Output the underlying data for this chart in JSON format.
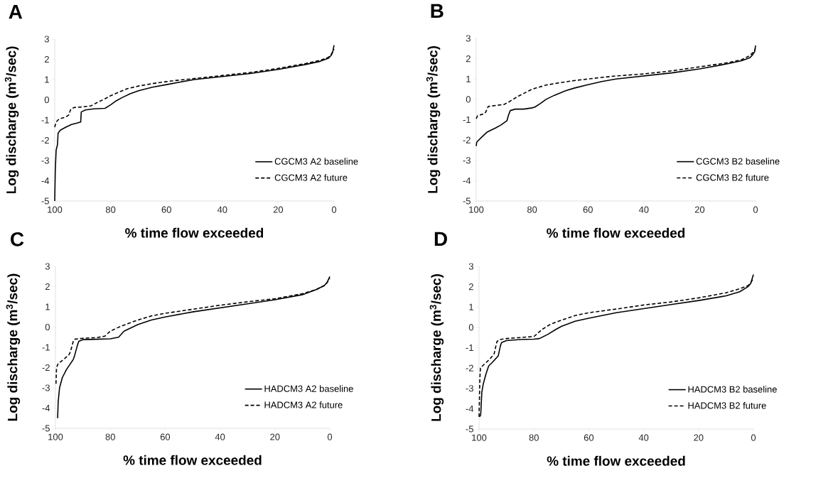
{
  "chart_data": [
    {
      "type": "line",
      "title": "A",
      "xlabel": "% time flow exceeded",
      "ylabel": "Log discharge (m$^{3}$/sec)",
      "xlim": [
        100,
        0
      ],
      "ylim": [
        -5,
        3
      ],
      "xticks": [
        100,
        80,
        60,
        40,
        20,
        0
      ],
      "yticks": [
        -5,
        -4,
        -3,
        -2,
        -1,
        0,
        1,
        2,
        3
      ],
      "grid": false,
      "legend": "bottom right",
      "marker": "none",
      "series": [
        {
          "name": "CGCM3 A2 baseline",
          "color": "#000000",
          "line_style": "solid",
          "x": [
            100,
            99.8,
            99.5,
            99,
            98.8,
            98,
            96,
            94,
            92,
            90.7,
            90.5,
            89,
            86,
            82,
            80,
            78,
            76,
            73,
            70,
            65,
            60,
            55,
            50,
            40,
            30,
            20,
            10,
            5,
            2,
            1,
            0.5,
            0
          ],
          "values": [
            -5,
            -3.5,
            -2.5,
            -2.2,
            -1.65,
            -1.5,
            -1.35,
            -1.22,
            -1.15,
            -1.1,
            -0.6,
            -0.5,
            -0.45,
            -0.42,
            -0.25,
            -0.05,
            0.1,
            0.3,
            0.45,
            0.62,
            0.75,
            0.88,
            1.0,
            1.15,
            1.3,
            1.5,
            1.75,
            1.9,
            2.05,
            2.2,
            2.35,
            2.7
          ]
        },
        {
          "name": "CGCM3 A2 future",
          "color": "#000000",
          "line_style": "dashed",
          "x": [
            100,
            99.5,
            98.5,
            96,
            95,
            94.2,
            93,
            90,
            87,
            85,
            82,
            80,
            77,
            74,
            70,
            65,
            60,
            55,
            50,
            40,
            30,
            20,
            10,
            5,
            2,
            1,
            0
          ],
          "values": [
            -1.35,
            -1.1,
            -0.95,
            -0.85,
            -0.75,
            -0.45,
            -0.38,
            -0.35,
            -0.3,
            -0.15,
            0.05,
            0.2,
            0.38,
            0.55,
            0.68,
            0.8,
            0.9,
            0.98,
            1.05,
            1.2,
            1.35,
            1.55,
            1.8,
            1.95,
            2.1,
            2.25,
            2.5
          ]
        }
      ]
    },
    {
      "type": "line",
      "title": "B",
      "xlabel": "% time flow exceeded",
      "ylabel": "Log discharge (m$^{3}$/sec)",
      "xlim": [
        100,
        0
      ],
      "ylim": [
        -5,
        3
      ],
      "xticks": [
        100,
        80,
        60,
        40,
        20,
        0
      ],
      "yticks": [
        -5,
        -4,
        -3,
        -2,
        -1,
        0,
        1,
        2,
        3
      ],
      "grid": false,
      "legend": "bottom right",
      "marker": "none",
      "series": [
        {
          "name": "CGCM3 B2 baseline",
          "color": "#000000",
          "line_style": "solid",
          "x": [
            100,
            99.8,
            98,
            96,
            93,
            91,
            89,
            88.5,
            87.8,
            86,
            83,
            80,
            79,
            77,
            75,
            72,
            68,
            65,
            60,
            55,
            50,
            40,
            30,
            20,
            10,
            5,
            2,
            1,
            0.3,
            0
          ],
          "values": [
            -2.3,
            -2.1,
            -1.85,
            -1.6,
            -1.4,
            -1.25,
            -1.05,
            -0.8,
            -0.55,
            -0.48,
            -0.48,
            -0.42,
            -0.38,
            -0.2,
            0,
            0.2,
            0.42,
            0.55,
            0.72,
            0.88,
            1.0,
            1.15,
            1.3,
            1.5,
            1.75,
            1.9,
            2.05,
            2.2,
            2.35,
            2.65
          ]
        },
        {
          "name": "CGCM3 B2 future",
          "color": "#000000",
          "line_style": "dashed",
          "x": [
            100,
            99.5,
            97,
            96.5,
            95.7,
            93,
            90,
            88,
            85,
            80,
            75,
            70,
            65,
            60,
            55,
            50,
            40,
            30,
            20,
            10,
            5,
            2,
            1,
            0
          ],
          "values": [
            -0.95,
            -0.8,
            -0.7,
            -0.6,
            -0.35,
            -0.3,
            -0.25,
            -0.1,
            0.15,
            0.5,
            0.7,
            0.82,
            0.92,
            1.0,
            1.08,
            1.15,
            1.25,
            1.4,
            1.6,
            1.8,
            1.95,
            2.15,
            2.3,
            2.5
          ]
        }
      ]
    },
    {
      "type": "line",
      "title": "C",
      "xlabel": "% time flow exceeded",
      "ylabel": "Log discharge (m$^{3}$/sec)",
      "xlim": [
        100,
        0
      ],
      "ylim": [
        -5,
        3
      ],
      "xticks": [
        100,
        80,
        60,
        40,
        20,
        0
      ],
      "yticks": [
        -5,
        -4,
        -3,
        -2,
        -1,
        0,
        1,
        2,
        3
      ],
      "grid": false,
      "legend": "bottom right",
      "marker": "none",
      "series": [
        {
          "name": "HADCM3 A2 baseline",
          "color": "#000000",
          "line_style": "solid",
          "x": [
            99.2,
            99,
            98.5,
            97.5,
            96,
            95,
            93.5,
            93,
            92,
            91.5,
            90,
            85,
            80,
            77,
            75,
            70,
            65,
            60,
            50,
            40,
            30,
            20,
            10,
            5,
            2,
            1,
            0
          ],
          "values": [
            -4.5,
            -3.7,
            -3.0,
            -2.5,
            -2.1,
            -1.9,
            -1.6,
            -1.4,
            -0.9,
            -0.7,
            -0.62,
            -0.6,
            -0.58,
            -0.5,
            -0.2,
            0.12,
            0.35,
            0.5,
            0.75,
            0.95,
            1.15,
            1.35,
            1.6,
            1.85,
            2.05,
            2.2,
            2.5
          ]
        },
        {
          "name": "HADCM3 A2 future",
          "color": "#000000",
          "line_style": "dashed",
          "x": [
            99.8,
            99.6,
            99,
            97,
            95,
            94.5,
            93.5,
            93,
            90,
            85,
            82,
            80,
            76,
            73,
            70,
            65,
            60,
            50,
            40,
            30,
            20,
            10,
            5,
            2,
            1,
            0
          ],
          "values": [
            -2.8,
            -2.0,
            -1.8,
            -1.6,
            -1.35,
            -1.2,
            -0.7,
            -0.6,
            -0.55,
            -0.52,
            -0.45,
            -0.2,
            0.05,
            0.2,
            0.35,
            0.55,
            0.68,
            0.88,
            1.08,
            1.25,
            1.4,
            1.65,
            1.85,
            2.05,
            2.2,
            2.4
          ]
        }
      ]
    },
    {
      "type": "line",
      "title": "D",
      "xlabel": "% time flow exceeded",
      "ylabel": "Log discharge (m$^{3}$/sec)",
      "xlim": [
        100,
        0
      ],
      "ylim": [
        -5,
        3
      ],
      "xticks": [
        100,
        80,
        60,
        40,
        20,
        0
      ],
      "yticks": [
        -5,
        -4,
        -3,
        -2,
        -1,
        0,
        1,
        2,
        3
      ],
      "grid": false,
      "legend": "bottom right",
      "marker": "none",
      "series": [
        {
          "name": "HADCM3 B2 baseline",
          "color": "#000000",
          "line_style": "solid",
          "x": [
            99.8,
            99.4,
            99,
            98.5,
            97.5,
            96.5,
            95,
            93,
            92.2,
            91.8,
            90,
            85,
            80,
            78,
            75,
            72,
            70,
            65,
            60,
            50,
            40,
            30,
            20,
            10,
            5,
            2,
            1,
            0
          ],
          "values": [
            -4.4,
            -4.3,
            -3.2,
            -2.8,
            -2.3,
            -1.9,
            -1.7,
            -1.4,
            -0.9,
            -0.75,
            -0.65,
            -0.6,
            -0.58,
            -0.55,
            -0.35,
            -0.1,
            0.05,
            0.3,
            0.45,
            0.72,
            0.92,
            1.12,
            1.32,
            1.55,
            1.75,
            2.0,
            2.15,
            2.6
          ]
        },
        {
          "name": "HADCM3 B2 future",
          "color": "#000000",
          "line_style": "dashed",
          "x": [
            100,
            99.7,
            99.5,
            98,
            96,
            94.5,
            93.5,
            92.5,
            90,
            85,
            80,
            77,
            74,
            70,
            65,
            60,
            50,
            40,
            30,
            20,
            10,
            5,
            2,
            1,
            0
          ],
          "values": [
            -4.4,
            -2.5,
            -2.0,
            -1.8,
            -1.55,
            -1.3,
            -0.7,
            -0.6,
            -0.55,
            -0.5,
            -0.45,
            -0.1,
            0.15,
            0.35,
            0.58,
            0.72,
            0.9,
            1.1,
            1.25,
            1.45,
            1.7,
            1.9,
            2.05,
            2.2,
            2.4
          ]
        }
      ]
    }
  ]
}
